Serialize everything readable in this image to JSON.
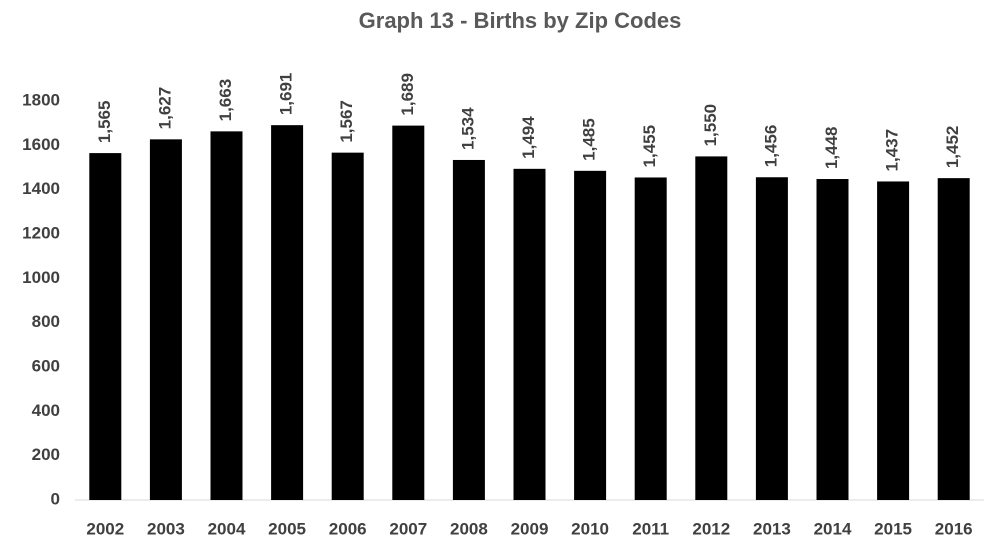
{
  "chart_data": {
    "type": "bar",
    "title": "Graph 13 - Births by Zip Codes",
    "categories": [
      "2002",
      "2003",
      "2004",
      "2005",
      "2006",
      "2007",
      "2008",
      "2009",
      "2010",
      "2011",
      "2012",
      "2013",
      "2014",
      "2015",
      "2016"
    ],
    "values": [
      1565,
      1627,
      1663,
      1691,
      1567,
      1689,
      1534,
      1494,
      1485,
      1455,
      1550,
      1456,
      1448,
      1437,
      1452
    ],
    "value_labels": [
      "1,565",
      "1,627",
      "1,663",
      "1,691",
      "1,567",
      "1,689",
      "1,534",
      "1,494",
      "1,485",
      "1,455",
      "1,550",
      "1,456",
      "1,448",
      "1,437",
      "1,452"
    ],
    "color": "#000000",
    "ylim": [
      0,
      1800
    ],
    "yticks": [
      0,
      200,
      400,
      600,
      800,
      1000,
      1200,
      1400,
      1600,
      1800
    ],
    "grid": false
  }
}
